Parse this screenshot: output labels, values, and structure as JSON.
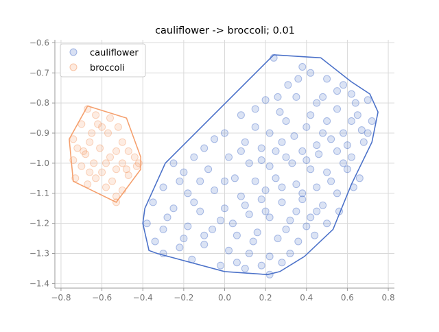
{
  "chart_data": {
    "type": "scatter",
    "title": "cauliflower -> broccoli; 0.01",
    "xlabel": "",
    "ylabel": "",
    "xlim": [
      -0.83,
      0.83
    ],
    "ylim": [
      -1.415,
      -0.59
    ],
    "x_ticks": [
      -0.8,
      -0.6,
      -0.4,
      -0.2,
      0.0,
      0.2,
      0.4,
      0.6,
      0.8
    ],
    "x_tick_labels": [
      "−0.8",
      "−0.6",
      "−0.4",
      "−0.2",
      "0.0",
      "0.2",
      "0.4",
      "0.6",
      "0.8"
    ],
    "y_ticks": [
      -0.6,
      -0.7,
      -0.8,
      -0.9,
      -1.0,
      -1.1,
      -1.2,
      -1.3,
      -1.4
    ],
    "y_tick_labels": [
      "−0.6",
      "−0.7",
      "−0.8",
      "−0.9",
      "−1.0",
      "−1.1",
      "−1.2",
      "−1.3",
      "−1.4"
    ],
    "grid": true,
    "legend_position": "top-left",
    "series": [
      {
        "name": "cauliflower",
        "color": "#4c72c9",
        "hull": [
          [
            0.24,
            -0.64
          ],
          [
            0.47,
            -0.65
          ],
          [
            0.62,
            -0.73
          ],
          [
            0.71,
            -0.77
          ],
          [
            0.75,
            -0.83
          ],
          [
            0.72,
            -0.93
          ],
          [
            0.62,
            -1.07
          ],
          [
            0.53,
            -1.22
          ],
          [
            0.39,
            -1.31
          ],
          [
            0.27,
            -1.36
          ],
          [
            0.21,
            -1.37
          ],
          [
            0.0,
            -1.36
          ],
          [
            -0.33,
            -1.3
          ],
          [
            -0.37,
            -1.29
          ],
          [
            -0.4,
            -1.2
          ],
          [
            -0.39,
            -1.15
          ],
          [
            -0.29,
            -1.0
          ],
          [
            0.24,
            -0.64
          ]
        ],
        "points": [
          [
            0.24,
            -0.65
          ],
          [
            0.38,
            -0.68
          ],
          [
            0.42,
            -0.7
          ],
          [
            0.5,
            -0.72
          ],
          [
            0.58,
            -0.74
          ],
          [
            0.62,
            -0.77
          ],
          [
            0.7,
            -0.79
          ],
          [
            0.31,
            -0.74
          ],
          [
            0.2,
            -0.79
          ],
          [
            0.27,
            -0.83
          ],
          [
            0.35,
            -0.78
          ],
          [
            0.45,
            -0.8
          ],
          [
            0.55,
            -0.82
          ],
          [
            0.65,
            -0.84
          ],
          [
            0.72,
            -0.86
          ],
          [
            0.08,
            -0.84
          ],
          [
            0.15,
            -0.88
          ],
          [
            0.22,
            -0.9
          ],
          [
            0.3,
            -0.86
          ],
          [
            0.4,
            -0.88
          ],
          [
            0.48,
            -0.9
          ],
          [
            0.58,
            -0.9
          ],
          [
            0.67,
            -0.89
          ],
          [
            0.7,
            -0.9
          ],
          [
            0.0,
            -0.9
          ],
          [
            -0.05,
            -0.92
          ],
          [
            0.1,
            -0.93
          ],
          [
            0.18,
            -0.95
          ],
          [
            0.28,
            -0.93
          ],
          [
            0.38,
            -0.96
          ],
          [
            0.45,
            -0.94
          ],
          [
            0.55,
            -0.96
          ],
          [
            0.62,
            -0.98
          ],
          [
            -0.1,
            -0.95
          ],
          [
            -0.15,
            -0.98
          ],
          [
            0.02,
            -0.98
          ],
          [
            0.12,
            -1.0
          ],
          [
            0.22,
            -1.01
          ],
          [
            0.33,
            -1.0
          ],
          [
            0.42,
            -1.02
          ],
          [
            0.5,
            -1.03
          ],
          [
            0.6,
            -1.02
          ],
          [
            0.66,
            -1.05
          ],
          [
            -0.25,
            -1.0
          ],
          [
            -0.2,
            -1.03
          ],
          [
            -0.08,
            -1.02
          ],
          [
            0.05,
            -1.05
          ],
          [
            0.15,
            -1.06
          ],
          [
            0.25,
            -1.05
          ],
          [
            0.35,
            -1.07
          ],
          [
            0.45,
            -1.08
          ],
          [
            0.55,
            -1.1
          ],
          [
            0.63,
            -1.08
          ],
          [
            -0.3,
            -1.08
          ],
          [
            -0.18,
            -1.1
          ],
          [
            -0.05,
            -1.09
          ],
          [
            0.08,
            -1.11
          ],
          [
            0.18,
            -1.12
          ],
          [
            0.28,
            -1.13
          ],
          [
            0.38,
            -1.12
          ],
          [
            0.48,
            -1.14
          ],
          [
            0.56,
            -1.16
          ],
          [
            -0.35,
            -1.13
          ],
          [
            -0.25,
            -1.15
          ],
          [
            -0.12,
            -1.16
          ],
          [
            0.0,
            -1.15
          ],
          [
            0.12,
            -1.17
          ],
          [
            0.22,
            -1.18
          ],
          [
            0.32,
            -1.19
          ],
          [
            0.42,
            -1.18
          ],
          [
            0.5,
            -1.2
          ],
          [
            -0.38,
            -1.2
          ],
          [
            -0.3,
            -1.22
          ],
          [
            -0.18,
            -1.21
          ],
          [
            -0.06,
            -1.22
          ],
          [
            0.06,
            -1.24
          ],
          [
            0.16,
            -1.23
          ],
          [
            0.26,
            -1.25
          ],
          [
            0.36,
            -1.26
          ],
          [
            0.44,
            -1.24
          ],
          [
            -0.34,
            -1.26
          ],
          [
            -0.22,
            -1.28
          ],
          [
            -0.1,
            -1.27
          ],
          [
            0.02,
            -1.29
          ],
          [
            0.12,
            -1.3
          ],
          [
            0.22,
            -1.31
          ],
          [
            0.32,
            -1.3
          ],
          [
            -0.3,
            -1.3
          ],
          [
            -0.16,
            -1.32
          ],
          [
            0.06,
            -1.33
          ],
          [
            0.18,
            -1.34
          ],
          [
            0.28,
            -1.33
          ],
          [
            0.22,
            -1.37
          ],
          [
            0.1,
            -1.35
          ],
          [
            -0.02,
            -1.34
          ],
          [
            0.4,
            -0.99
          ],
          [
            0.5,
            -0.86
          ],
          [
            0.6,
            -0.94
          ],
          [
            0.3,
            -0.98
          ],
          [
            0.2,
            -1.09
          ],
          [
            0.1,
            -1.14
          ],
          [
            -0.15,
            -1.13
          ],
          [
            -0.28,
            -1.18
          ],
          [
            0.35,
            -1.16
          ],
          [
            0.46,
            -0.97
          ],
          [
            0.52,
            -1.06
          ],
          [
            0.15,
            -0.82
          ],
          [
            0.42,
            -0.84
          ],
          [
            0.62,
            -0.86
          ],
          [
            0.25,
            -0.96
          ],
          [
            -0.02,
            -1.19
          ],
          [
            0.3,
            -1.22
          ],
          [
            0.0,
            -1.06
          ],
          [
            -0.1,
            -1.24
          ],
          [
            0.14,
            -1.26
          ],
          [
            0.38,
            -1.1
          ],
          [
            0.55,
            -0.76
          ],
          [
            0.68,
            -0.93
          ],
          [
            -0.22,
            -1.06
          ],
          [
            0.08,
            -0.96
          ],
          [
            0.2,
            -1.16
          ],
          [
            0.34,
            -0.91
          ],
          [
            0.58,
            -1.0
          ],
          [
            0.45,
            -1.16
          ],
          [
            0.26,
            -0.78
          ],
          [
            0.36,
            -0.72
          ],
          [
            -0.12,
            -1.06
          ],
          [
            0.04,
            -1.2
          ],
          [
            0.28,
            -1.08
          ],
          [
            0.48,
            -0.78
          ],
          [
            0.64,
            -0.8
          ],
          [
            -0.2,
            -1.25
          ],
          [
            0.18,
            -0.99
          ],
          [
            0.4,
            -1.21
          ],
          [
            0.52,
            -0.92
          ]
        ]
      },
      {
        "name": "broccoli",
        "color": "#f5a06e",
        "hull": [
          [
            -0.67,
            -0.81
          ],
          [
            -0.48,
            -0.85
          ],
          [
            -0.41,
            -0.98
          ],
          [
            -0.41,
            -1.02
          ],
          [
            -0.53,
            -1.13
          ],
          [
            -0.74,
            -1.06
          ],
          [
            -0.76,
            -0.92
          ],
          [
            -0.67,
            -0.81
          ]
        ],
        "points": [
          [
            -0.67,
            -0.82
          ],
          [
            -0.63,
            -0.84
          ],
          [
            -0.56,
            -0.85
          ],
          [
            -0.7,
            -0.87
          ],
          [
            -0.6,
            -0.88
          ],
          [
            -0.52,
            -0.88
          ],
          [
            -0.65,
            -0.9
          ],
          [
            -0.57,
            -0.9
          ],
          [
            -0.74,
            -0.92
          ],
          [
            -0.66,
            -0.93
          ],
          [
            -0.5,
            -0.93
          ],
          [
            -0.72,
            -0.95
          ],
          [
            -0.61,
            -0.95
          ],
          [
            -0.53,
            -0.96
          ],
          [
            -0.47,
            -0.96
          ],
          [
            -0.68,
            -0.97
          ],
          [
            -0.56,
            -0.98
          ],
          [
            -0.44,
            -0.98
          ],
          [
            -0.74,
            -0.99
          ],
          [
            -0.64,
            -1.0
          ],
          [
            -0.58,
            -1.0
          ],
          [
            -0.5,
            -1.0
          ],
          [
            -0.7,
            -1.01
          ],
          [
            -0.53,
            -1.02
          ],
          [
            -0.43,
            -1.01
          ],
          [
            -0.66,
            -1.03
          ],
          [
            -0.6,
            -1.03
          ],
          [
            -0.47,
            -1.04
          ],
          [
            -0.73,
            -1.05
          ],
          [
            -0.63,
            -1.05
          ],
          [
            -0.55,
            -1.06
          ],
          [
            -0.67,
            -1.07
          ],
          [
            -0.58,
            -1.08
          ],
          [
            -0.5,
            -1.09
          ],
          [
            -0.53,
            -1.11
          ],
          [
            -0.53,
            -1.13
          ],
          [
            -0.42,
            -1.0
          ],
          [
            -0.48,
            -1.02
          ],
          [
            -0.62,
            -0.87
          ],
          [
            -0.69,
            -0.96
          ]
        ]
      }
    ]
  }
}
